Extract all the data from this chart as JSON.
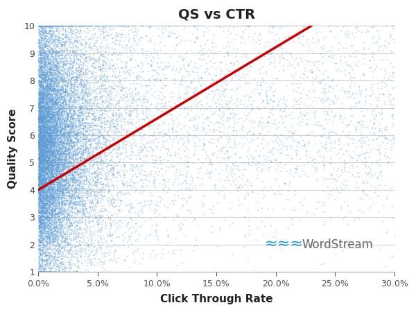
{
  "title": "QS vs CTR",
  "xlabel": "Click Through Rate",
  "ylabel": "Quality Score",
  "xlim": [
    0.0,
    0.3
  ],
  "ylim": [
    1,
    10
  ],
  "yticks": [
    1,
    2,
    3,
    4,
    5,
    6,
    7,
    8,
    9,
    10
  ],
  "xticks": [
    0.0,
    0.05,
    0.1,
    0.15,
    0.2,
    0.25,
    0.3
  ],
  "xtick_labels": [
    "0.0%",
    "5.0%",
    "10.0%",
    "15.0%",
    "20.0%",
    "25.0%",
    "30.0%"
  ],
  "scatter_color": "#5B9BD5",
  "line_color": "#CC0000",
  "line_x": [
    0.0,
    0.23
  ],
  "line_y": [
    4.0,
    10.0
  ],
  "background_color": "#FFFFFF",
  "grid_color": "#D0D0D0",
  "title_fontsize": 14,
  "label_fontsize": 11,
  "wordstream_text": "WordStream",
  "wordstream_color": "#666666",
  "wordstream_wave_color": "#2A9BC8",
  "random_seed": 42,
  "n_dense_core": 15000,
  "n_medium": 3000,
  "n_sparse": 2000
}
